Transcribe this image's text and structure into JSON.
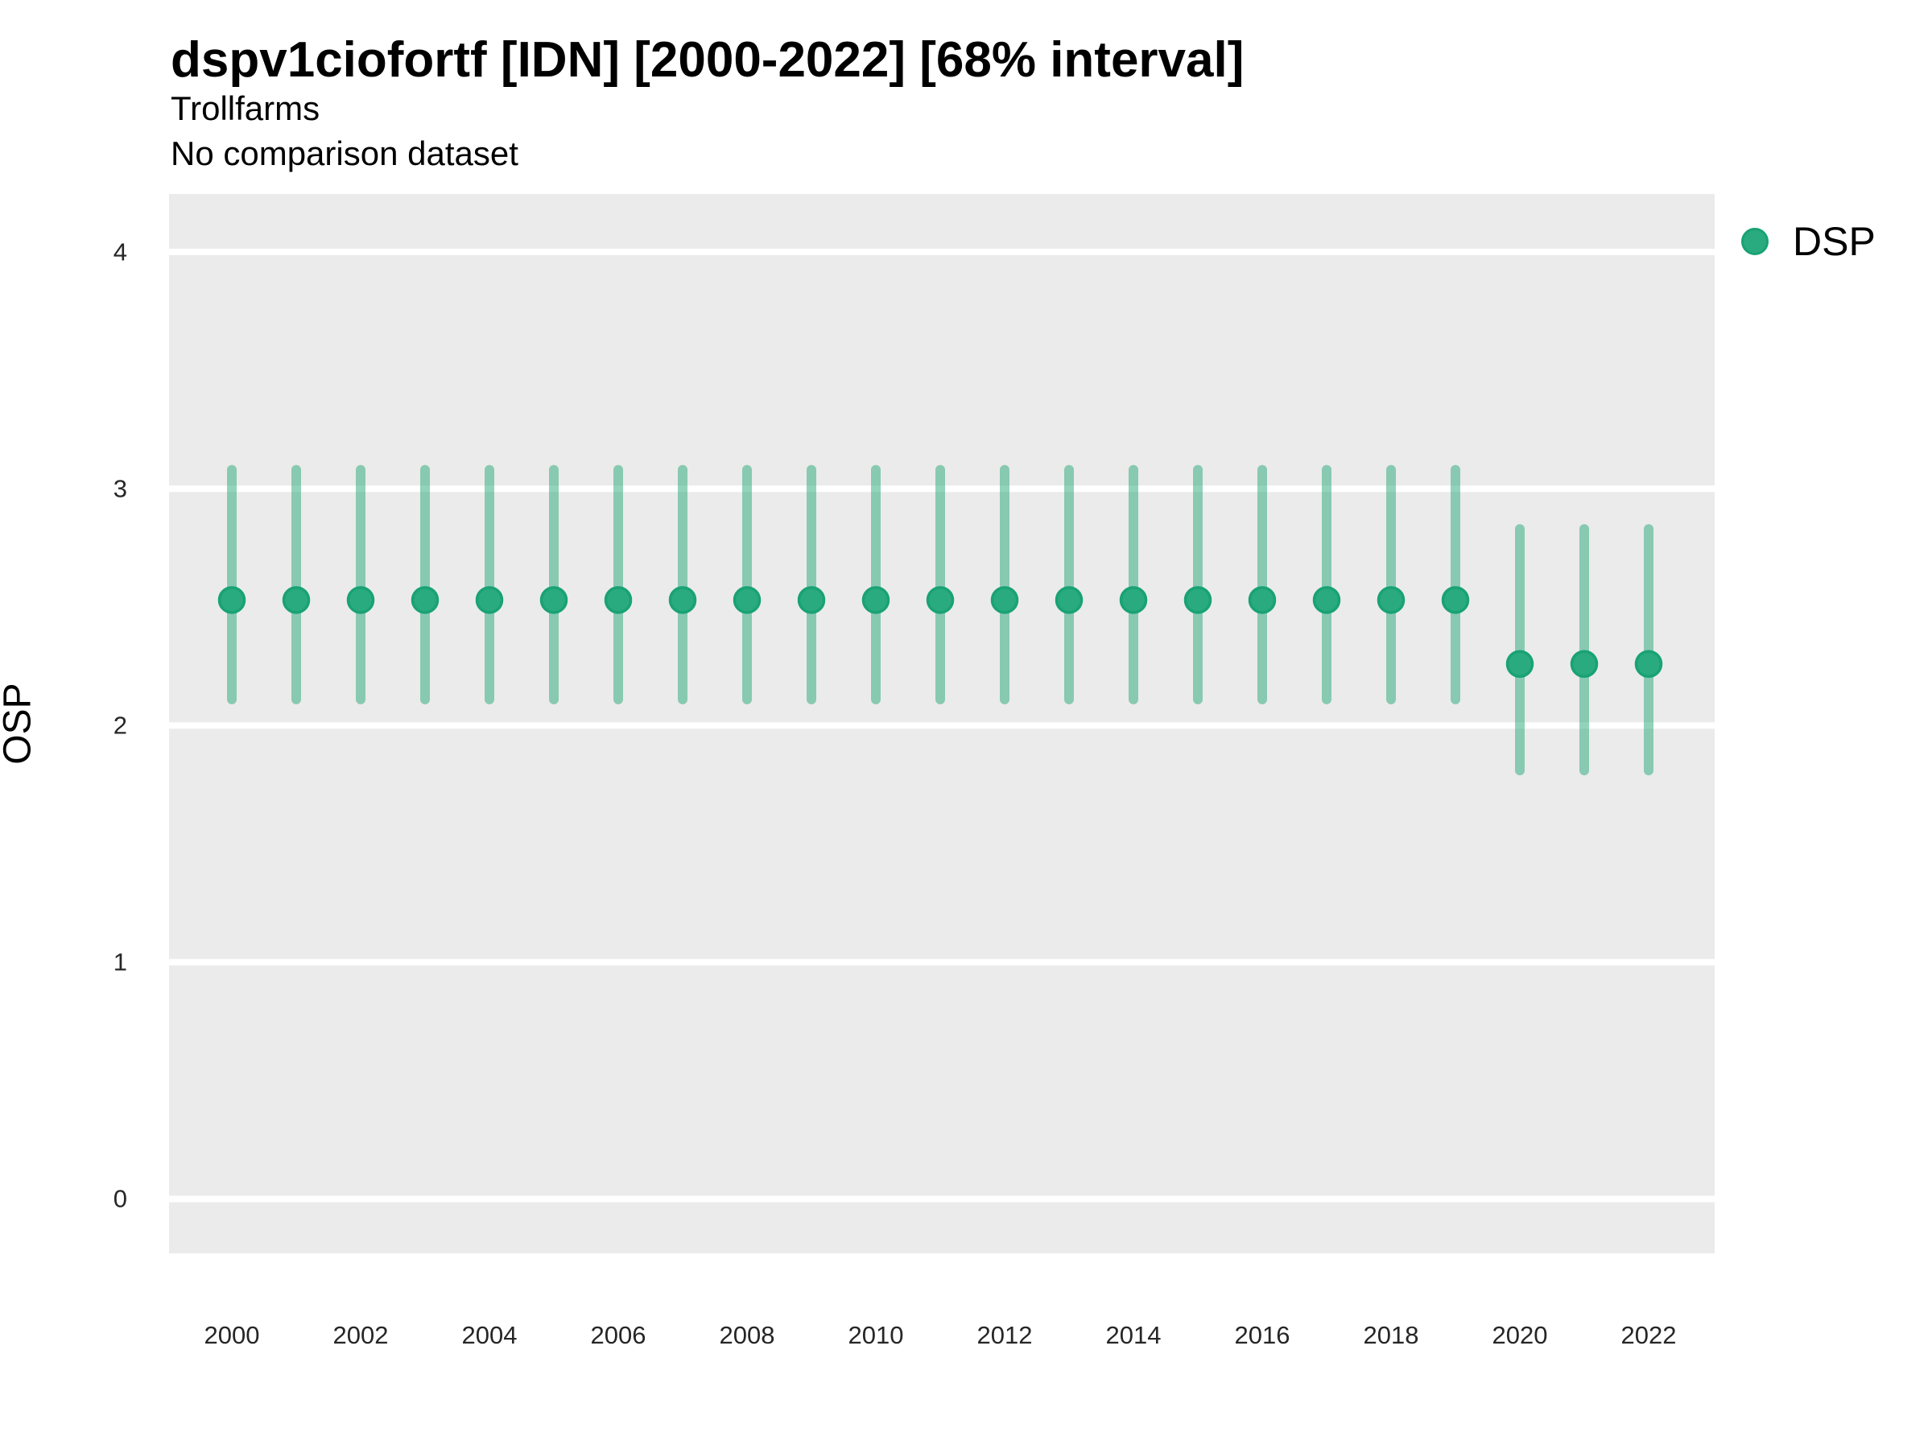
{
  "header": {
    "title": "dspv1ciofortf [IDN] [2000-2022] [68% interval]",
    "subtitle": "Trollfarms",
    "comparison_note": "No comparison dataset"
  },
  "legend": {
    "items": [
      {
        "label": "DSP",
        "swatch": "circle"
      }
    ]
  },
  "axes": {
    "y_label": "OSP",
    "x_label": ""
  },
  "colors": {
    "panel_bg": "#ebebeb",
    "gridline": "#ffffff",
    "point_fill": "#2aaa7f",
    "point_stroke": "#19a275",
    "interval_stroke": "rgba(38, 168, 120, 0.5)",
    "tick_text": "#262626",
    "title_text": "#000000"
  },
  "chart_data": {
    "type": "scatter",
    "title": "dspv1ciofortf [IDN] [2000-2022] [68% interval]",
    "subtitle": "Trollfarms",
    "note": "No comparison dataset",
    "xlabel": "",
    "ylabel": "OSP",
    "legend_entries": [
      "DSP"
    ],
    "legend_position": "right-top",
    "grid": "horizontal-major-only",
    "interval": "68%",
    "x_ticks": [
      2000,
      2002,
      2004,
      2006,
      2008,
      2010,
      2012,
      2014,
      2016,
      2018,
      2020,
      2022
    ],
    "y_ticks": [
      0,
      1,
      2,
      3,
      4
    ],
    "xlim": [
      1999.025,
      2023.025
    ],
    "ylim": [
      -0.23,
      4.245
    ],
    "series": [
      {
        "name": "DSP",
        "points": [
          {
            "x": 2000,
            "y": 2.53,
            "lo": 2.11,
            "hi": 3.08
          },
          {
            "x": 2001,
            "y": 2.53,
            "lo": 2.11,
            "hi": 3.08
          },
          {
            "x": 2002,
            "y": 2.53,
            "lo": 2.11,
            "hi": 3.08
          },
          {
            "x": 2003,
            "y": 2.53,
            "lo": 2.11,
            "hi": 3.08
          },
          {
            "x": 2004,
            "y": 2.53,
            "lo": 2.11,
            "hi": 3.08
          },
          {
            "x": 2005,
            "y": 2.53,
            "lo": 2.11,
            "hi": 3.08
          },
          {
            "x": 2006,
            "y": 2.53,
            "lo": 2.11,
            "hi": 3.08
          },
          {
            "x": 2007,
            "y": 2.53,
            "lo": 2.11,
            "hi": 3.08
          },
          {
            "x": 2008,
            "y": 2.53,
            "lo": 2.11,
            "hi": 3.08
          },
          {
            "x": 2009,
            "y": 2.53,
            "lo": 2.11,
            "hi": 3.08
          },
          {
            "x": 2010,
            "y": 2.53,
            "lo": 2.11,
            "hi": 3.08
          },
          {
            "x": 2011,
            "y": 2.53,
            "lo": 2.11,
            "hi": 3.08
          },
          {
            "x": 2012,
            "y": 2.53,
            "lo": 2.11,
            "hi": 3.08
          },
          {
            "x": 2013,
            "y": 2.53,
            "lo": 2.11,
            "hi": 3.08
          },
          {
            "x": 2014,
            "y": 2.53,
            "lo": 2.11,
            "hi": 3.08
          },
          {
            "x": 2015,
            "y": 2.53,
            "lo": 2.11,
            "hi": 3.08
          },
          {
            "x": 2016,
            "y": 2.53,
            "lo": 2.11,
            "hi": 3.08
          },
          {
            "x": 2017,
            "y": 2.53,
            "lo": 2.11,
            "hi": 3.08
          },
          {
            "x": 2018,
            "y": 2.53,
            "lo": 2.11,
            "hi": 3.08
          },
          {
            "x": 2019,
            "y": 2.53,
            "lo": 2.11,
            "hi": 3.08
          },
          {
            "x": 2020,
            "y": 2.26,
            "lo": 1.81,
            "hi": 2.83
          },
          {
            "x": 2021,
            "y": 2.26,
            "lo": 1.81,
            "hi": 2.83
          },
          {
            "x": 2022,
            "y": 2.26,
            "lo": 1.81,
            "hi": 2.83
          }
        ]
      }
    ]
  }
}
